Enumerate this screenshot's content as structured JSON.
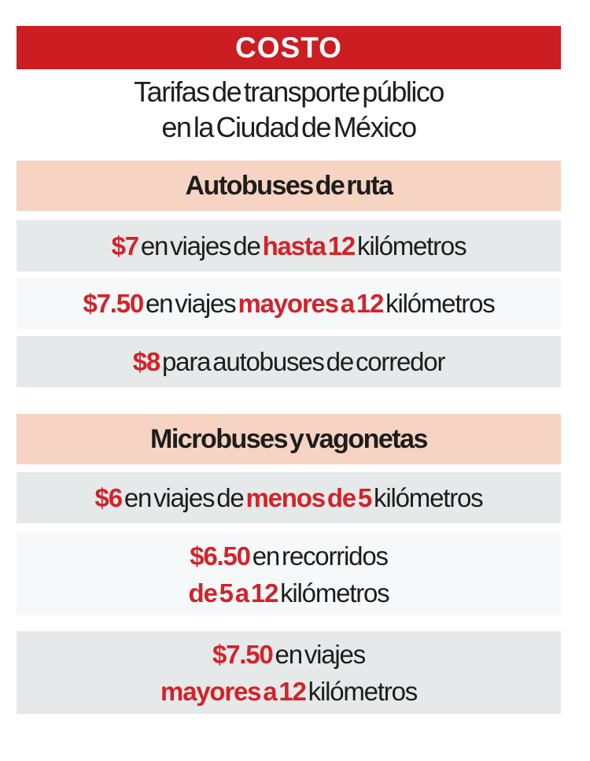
{
  "colors": {
    "red": "#cb1d22",
    "red_text": "#d2232a",
    "peach": "#f6d3c3",
    "gray_row": "#e5e9e9",
    "light_row": "#f6f9f9",
    "ink": "#1d1d1b"
  },
  "header": {
    "banner": "COSTO",
    "subtitle_line1": "Tarifas de transporte público",
    "subtitle_line2": "en la Ciudad de México"
  },
  "sections": [
    {
      "title": "Autobuses de ruta",
      "rows": [
        {
          "bg": "gray",
          "lines": [
            [
              {
                "text": "$7",
                "highlight": true
              },
              {
                "text": " en viajes de ",
                "highlight": false
              },
              {
                "text": "hasta 12",
                "highlight": true
              },
              {
                "text": " kilómetros",
                "highlight": false
              }
            ]
          ]
        },
        {
          "bg": "light",
          "lines": [
            [
              {
                "text": "$7.50",
                "highlight": true
              },
              {
                "text": " en viajes ",
                "highlight": false
              },
              {
                "text": "mayores a 12",
                "highlight": true
              },
              {
                "text": " kilómetros",
                "highlight": false
              }
            ]
          ]
        },
        {
          "bg": "gray",
          "lines": [
            [
              {
                "text": "$8",
                "highlight": true
              },
              {
                "text": " para autobuses de corredor",
                "highlight": false
              }
            ]
          ]
        }
      ]
    },
    {
      "title": "Microbuses y vagonetas",
      "rows": [
        {
          "bg": "gray",
          "lines": [
            [
              {
                "text": "$6",
                "highlight": true
              },
              {
                "text": " en viajes de ",
                "highlight": false
              },
              {
                "text": "menos de 5",
                "highlight": true
              },
              {
                "text": " kilómetros",
                "highlight": false
              }
            ]
          ]
        },
        {
          "bg": "light",
          "lines": [
            [
              {
                "text": "$6.50",
                "highlight": true
              },
              {
                "text": " en recorridos",
                "highlight": false
              }
            ],
            [
              {
                "text": "de 5 a 12",
                "highlight": true
              },
              {
                "text": " kilómetros",
                "highlight": false
              }
            ]
          ]
        },
        {
          "bg": "gray",
          "lines": [
            [
              {
                "text": "$7.50",
                "highlight": true
              },
              {
                "text": " en viajes",
                "highlight": false
              }
            ],
            [
              {
                "text": "mayores a 12",
                "highlight": true
              },
              {
                "text": " kilómetros",
                "highlight": false
              }
            ]
          ]
        }
      ]
    }
  ],
  "chart_data": {
    "type": "table",
    "title": "COSTO — Tarifas de transporte público en la Ciudad de México",
    "currency": "MXN",
    "groups": [
      {
        "category": "Autobuses de ruta",
        "fares": [
          {
            "price": 7.0,
            "condition": "en viajes de hasta 12 kilómetros"
          },
          {
            "price": 7.5,
            "condition": "en viajes mayores a 12 kilómetros"
          },
          {
            "price": 8.0,
            "condition": "para autobuses de corredor"
          }
        ]
      },
      {
        "category": "Microbuses y vagonetas",
        "fares": [
          {
            "price": 6.0,
            "condition": "en viajes de menos de 5 kilómetros"
          },
          {
            "price": 6.5,
            "condition": "en recorridos de 5 a 12 kilómetros"
          },
          {
            "price": 7.5,
            "condition": "en viajes mayores a 12 kilómetros"
          }
        ]
      }
    ]
  }
}
